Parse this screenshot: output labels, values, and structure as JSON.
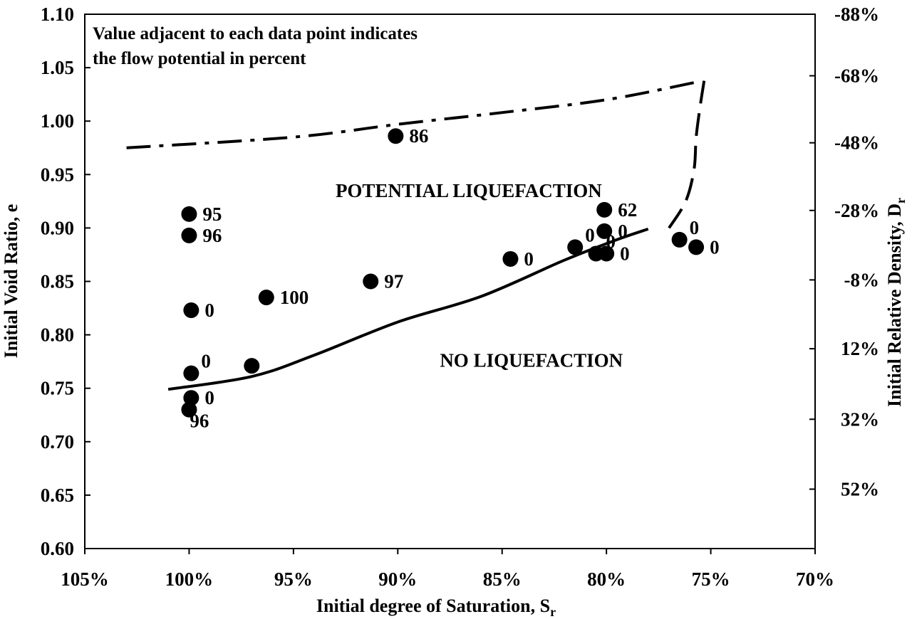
{
  "chart_data": {
    "type": "scatter",
    "title": "",
    "annotation": {
      "line1": "Value adjacent to each data point indicates",
      "line2": "the flow potential in percent"
    },
    "xlabel": {
      "main": "Initial degree of Saturation, S",
      "sub": "r"
    },
    "ylabel": "Initial Void Ratio, e",
    "y2label": {
      "main": "Initial Relative Density, D",
      "sub": "r"
    },
    "xlim": [
      105,
      70
    ],
    "ylim": [
      0.6,
      1.1
    ],
    "x_ticks": [
      {
        "v": 105,
        "label": "105%"
      },
      {
        "v": 100,
        "label": "100%"
      },
      {
        "v": 95,
        "label": "95%"
      },
      {
        "v": 90,
        "label": "90%"
      },
      {
        "v": 85,
        "label": "85%"
      },
      {
        "v": 80,
        "label": "80%"
      },
      {
        "v": 75,
        "label": "75%"
      },
      {
        "v": 70,
        "label": "70%"
      }
    ],
    "y_ticks": [
      {
        "v": 0.6,
        "label": "0.60"
      },
      {
        "v": 0.65,
        "label": "0.65"
      },
      {
        "v": 0.7,
        "label": "0.70"
      },
      {
        "v": 0.75,
        "label": "0.75"
      },
      {
        "v": 0.8,
        "label": "0.80"
      },
      {
        "v": 0.85,
        "label": "0.85"
      },
      {
        "v": 0.9,
        "label": "0.90"
      },
      {
        "v": 0.95,
        "label": "0.95"
      },
      {
        "v": 1.0,
        "label": "1.00"
      },
      {
        "v": 1.05,
        "label": "1.05"
      },
      {
        "v": 1.1,
        "label": "1.10"
      }
    ],
    "y2_ticks": [
      {
        "e": 1.1,
        "label": "-88%"
      },
      {
        "e": 1.0424,
        "label": "-68%"
      },
      {
        "e": 0.9797,
        "label": "-48%"
      },
      {
        "e": 0.9164,
        "label": "-28%"
      },
      {
        "e": 0.8514,
        "label": "-8%"
      },
      {
        "e": 0.787,
        "label": "12%"
      },
      {
        "e": 0.721,
        "label": "32%"
      },
      {
        "e": 0.6556,
        "label": "52%"
      }
    ],
    "region_labels": [
      {
        "text": "POTENTIAL LIQUEFACTION",
        "x": 86.6,
        "e": 0.935
      },
      {
        "text": "NO LIQUEFACTION",
        "x": 83.6,
        "e": 0.776
      }
    ],
    "points": [
      {
        "x": 100.0,
        "e": 0.913,
        "label": "95",
        "pos": "right"
      },
      {
        "x": 100.0,
        "e": 0.893,
        "label": "96",
        "pos": "right"
      },
      {
        "x": 99.9,
        "e": 0.823,
        "label": "0",
        "pos": "right"
      },
      {
        "x": 99.9,
        "e": 0.764,
        "label": "0",
        "pos": "upper-right"
      },
      {
        "x": 99.9,
        "e": 0.741,
        "label": "0",
        "pos": "right"
      },
      {
        "x": 100.0,
        "e": 0.73,
        "label": "96",
        "pos": "lower-right"
      },
      {
        "x": 96.3,
        "e": 0.835,
        "label": "100",
        "pos": "right"
      },
      {
        "x": 97.0,
        "e": 0.771,
        "label": "",
        "pos": "none"
      },
      {
        "x": 91.3,
        "e": 0.85,
        "label": "97",
        "pos": "right"
      },
      {
        "x": 90.1,
        "e": 0.986,
        "label": "86",
        "pos": "right"
      },
      {
        "x": 84.6,
        "e": 0.871,
        "label": "0",
        "pos": "right"
      },
      {
        "x": 81.5,
        "e": 0.882,
        "label": "0",
        "pos": "upper-right"
      },
      {
        "x": 80.5,
        "e": 0.876,
        "label": "0",
        "pos": "upper-right"
      },
      {
        "x": 80.1,
        "e": 0.917,
        "label": "62",
        "pos": "right"
      },
      {
        "x": 80.1,
        "e": 0.897,
        "label": "0",
        "pos": "right"
      },
      {
        "x": 80.0,
        "e": 0.876,
        "label": "0",
        "pos": "right"
      },
      {
        "x": 76.5,
        "e": 0.889,
        "label": "0",
        "pos": "upper-right"
      },
      {
        "x": 75.7,
        "e": 0.882,
        "label": "0",
        "pos": "right"
      }
    ],
    "lines": [
      {
        "style": "solid",
        "points": [
          [
            101.0,
            0.749
          ],
          [
            97.0,
            0.761
          ],
          [
            94.0,
            0.781
          ],
          [
            90.0,
            0.812
          ],
          [
            86.0,
            0.836
          ],
          [
            82.0,
            0.87
          ],
          [
            79.5,
            0.889
          ],
          [
            78.0,
            0.899
          ]
        ]
      },
      {
        "style": "dashed",
        "points": [
          [
            77.0,
            0.9
          ],
          [
            76.2,
            0.925
          ],
          [
            75.8,
            0.955
          ],
          [
            75.7,
            0.985
          ],
          [
            75.5,
            1.015
          ],
          [
            75.3,
            1.04
          ]
        ]
      },
      {
        "style": "dashdot",
        "points": [
          [
            103.0,
            0.975
          ],
          [
            95.0,
            0.985
          ],
          [
            90.0,
            0.997
          ],
          [
            85.0,
            1.008
          ],
          [
            80.0,
            1.02
          ],
          [
            75.8,
            1.036
          ]
        ]
      }
    ]
  }
}
